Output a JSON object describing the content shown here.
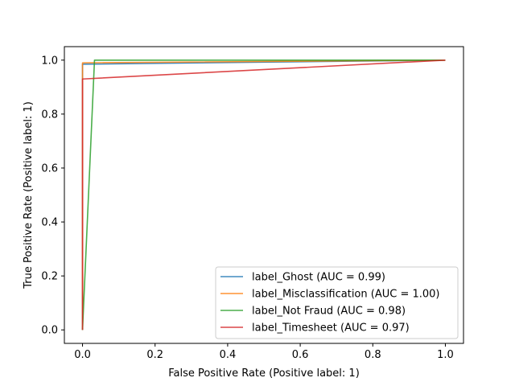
{
  "chart_data": {
    "type": "line",
    "title": "",
    "xlabel": "False Positive Rate (Positive label: 1)",
    "ylabel": "True Positive Rate (Positive label: 1)",
    "xlim": [
      -0.05,
      1.05
    ],
    "ylim": [
      -0.05,
      1.05
    ],
    "xticks": [
      0.0,
      0.2,
      0.4,
      0.6,
      0.8,
      1.0
    ],
    "yticks": [
      0.0,
      0.2,
      0.4,
      0.6,
      0.8,
      1.0
    ],
    "xtick_labels": [
      "0.0",
      "0.2",
      "0.4",
      "0.6",
      "0.8",
      "1.0"
    ],
    "ytick_labels": [
      "0.0",
      "0.2",
      "0.4",
      "0.6",
      "0.8",
      "1.0"
    ],
    "grid": false,
    "legend_position": "lower-right",
    "series": [
      {
        "name": "label_Ghost (AUC = 0.99)",
        "color": "#1f77b4",
        "x": [
          0.0,
          0.0,
          1.0
        ],
        "y": [
          0.0,
          0.985,
          1.0
        ]
      },
      {
        "name": "label_Misclassification (AUC = 1.00)",
        "color": "#ff7f0e",
        "x": [
          0.0,
          0.0,
          1.0
        ],
        "y": [
          0.0,
          0.99,
          1.0
        ]
      },
      {
        "name": "label_Not Fraud (AUC = 0.98)",
        "color": "#2ca02c",
        "x": [
          0.0,
          0.033,
          1.0
        ],
        "y": [
          0.0,
          1.0,
          1.0
        ]
      },
      {
        "name": "label_Timesheet (AUC = 0.97)",
        "color": "#d62728",
        "x": [
          0.0,
          0.0,
          1.0
        ],
        "y": [
          0.0,
          0.93,
          1.0
        ]
      }
    ]
  }
}
